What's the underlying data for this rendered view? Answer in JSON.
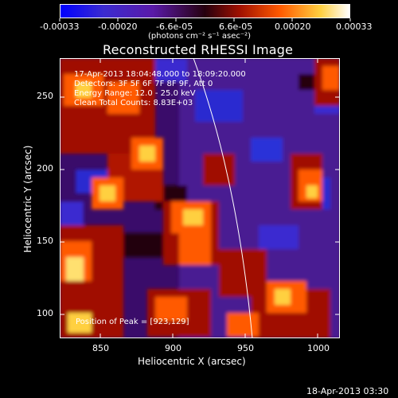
{
  "colorbar": {
    "tick_labels": [
      "-0.00033",
      "-0.00020",
      "-6.6e-05",
      "6.6e-05",
      "0.00020",
      "0.00033"
    ],
    "units": "(photons cm⁻² s⁻¹ asec⁻²)"
  },
  "plot": {
    "title": "Reconstructed RHESSI Image",
    "xlabel": "Heliocentric X (arcsec)",
    "ylabel": "Heliocentric Y (arcsec)",
    "x_ticks": [
      "850",
      "900",
      "950",
      "1000"
    ],
    "y_ticks": [
      "250",
      "200",
      "150",
      "100"
    ],
    "info_lines": [
      "17-Apr-2013 18:04:48.000 to 18:09:20.000",
      "Detectors: 3F 5F 6F 7F 8F 9F, Att 0",
      "Energy Range: 12.0 - 25.0 keV",
      "Clean    Total Counts: 8.83E+03"
    ],
    "peak_label": "Position of Peak = [923,129]"
  },
  "footer_timestamp": "18-Apr-2013 03:30",
  "colors": {
    "background": "#000000",
    "colormap": [
      "#0000ff",
      "#5a1aa8",
      "#26000e",
      "#a01000",
      "#ff5a00",
      "#ffd040",
      "#ffffff"
    ]
  }
}
